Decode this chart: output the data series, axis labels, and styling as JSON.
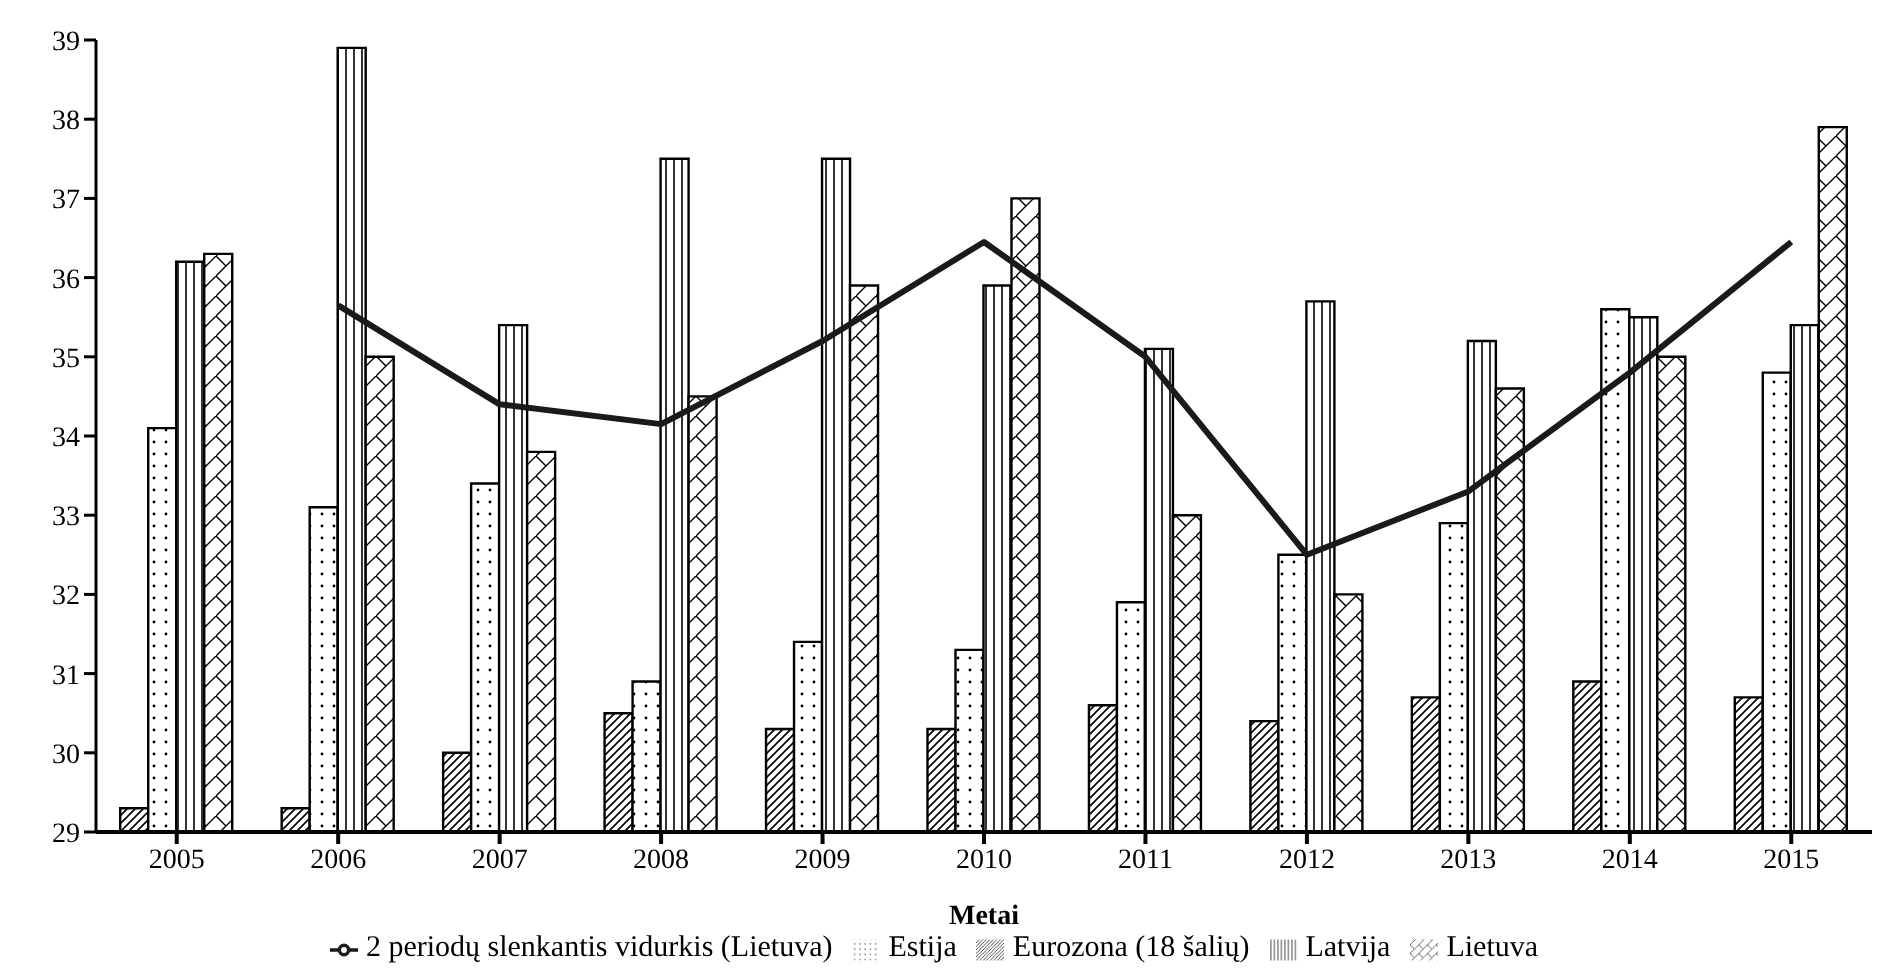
{
  "chart_data": {
    "type": "bar",
    "xlabel": "Metai",
    "categories": [
      "2005",
      "2006",
      "2007",
      "2008",
      "2009",
      "2010",
      "2011",
      "2012",
      "2013",
      "2014",
      "2015"
    ],
    "series": [
      {
        "name": "Eurozona (18 šalių)",
        "color": "#000000",
        "values": [
          29.3,
          29.3,
          30.0,
          30.5,
          30.3,
          30.3,
          30.6,
          30.4,
          30.7,
          30.9,
          30.7
        ]
      },
      {
        "name": "Estija",
        "color": "#000000",
        "values": [
          34.1,
          33.1,
          33.4,
          30.9,
          31.4,
          31.3,
          31.9,
          32.5,
          32.9,
          35.6,
          34.8
        ]
      },
      {
        "name": "Latvija",
        "color": "#000000",
        "values": [
          36.2,
          38.9,
          35.4,
          37.5,
          37.5,
          35.9,
          35.1,
          35.7,
          35.2,
          35.5,
          35.4
        ]
      },
      {
        "name": "Lietuva",
        "color": "#000000",
        "values": [
          36.3,
          35.0,
          33.8,
          34.5,
          35.9,
          37.0,
          33.0,
          32.0,
          34.6,
          35.0,
          37.9
        ]
      },
      {
        "name": "2 periodų slenkantis vidurkis (Lietuva)",
        "type": "line",
        "color": "#1a1a1a",
        "values": [
          null,
          35.65,
          34.4,
          34.15,
          35.2,
          36.45,
          35.0,
          32.5,
          33.3,
          34.8,
          36.45
        ]
      }
    ],
    "ylim": [
      29,
      39
    ],
    "yticks": [
      29,
      30,
      31,
      32,
      33,
      34,
      35,
      36,
      37,
      38,
      39
    ],
    "grid": false,
    "legend": "bottom",
    "marker": "none",
    "line_style": "solid"
  }
}
